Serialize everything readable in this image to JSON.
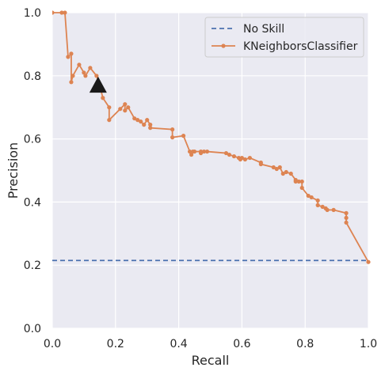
{
  "chart_data": {
    "type": "line",
    "title": "",
    "xlabel": "Recall",
    "ylabel": "Precision",
    "xlim": [
      0.0,
      1.0
    ],
    "ylim": [
      0.0,
      1.0
    ],
    "xticks": [
      "0.0",
      "0.2",
      "0.4",
      "0.6",
      "0.8",
      "1.0"
    ],
    "yticks": [
      "0.0",
      "0.2",
      "0.4",
      "0.6",
      "0.8",
      "1.0"
    ],
    "grid": true,
    "legend_position": "top-right",
    "series": [
      {
        "name": "No Skill",
        "style": "dashed",
        "markers": false,
        "color": "#4c72b0",
        "x": [
          0.0,
          1.0
        ],
        "y": [
          0.215,
          0.215
        ]
      },
      {
        "name": "KNeighborsClassifier",
        "style": "solid",
        "markers": true,
        "color": "#dd8452",
        "x": [
          0.0,
          0.03,
          0.04,
          0.05,
          0.06,
          0.06,
          0.065,
          0.085,
          0.1,
          0.105,
          0.12,
          0.14,
          0.15,
          0.16,
          0.18,
          0.18,
          0.215,
          0.23,
          0.23,
          0.24,
          0.26,
          0.27,
          0.28,
          0.29,
          0.3,
          0.31,
          0.31,
          0.38,
          0.38,
          0.415,
          0.435,
          0.44,
          0.445,
          0.45,
          0.47,
          0.47,
          0.48,
          0.49,
          0.55,
          0.56,
          0.575,
          0.59,
          0.595,
          0.6,
          0.61,
          0.625,
          0.66,
          0.66,
          0.7,
          0.71,
          0.72,
          0.73,
          0.74,
          0.755,
          0.77,
          0.77,
          0.78,
          0.79,
          0.79,
          0.81,
          0.82,
          0.84,
          0.84,
          0.855,
          0.865,
          0.87,
          0.89,
          0.93,
          0.93,
          0.93,
          1.0
        ],
        "y": [
          1.0,
          1.0,
          1.0,
          0.86,
          0.87,
          0.78,
          0.8,
          0.835,
          0.81,
          0.8,
          0.825,
          0.8,
          0.77,
          0.73,
          0.7,
          0.66,
          0.695,
          0.71,
          0.69,
          0.7,
          0.665,
          0.66,
          0.655,
          0.645,
          0.66,
          0.645,
          0.635,
          0.63,
          0.605,
          0.61,
          0.56,
          0.55,
          0.56,
          0.56,
          0.56,
          0.555,
          0.56,
          0.56,
          0.555,
          0.55,
          0.545,
          0.54,
          0.535,
          0.54,
          0.535,
          0.54,
          0.525,
          0.52,
          0.51,
          0.505,
          0.51,
          0.49,
          0.495,
          0.49,
          0.47,
          0.465,
          0.465,
          0.465,
          0.445,
          0.42,
          0.415,
          0.405,
          0.39,
          0.385,
          0.38,
          0.375,
          0.375,
          0.365,
          0.35,
          0.335,
          0.21
        ]
      }
    ],
    "annotations": [
      {
        "type": "triangle-marker",
        "x": 0.145,
        "y": 0.77,
        "color": "#1a1a1a"
      }
    ]
  }
}
